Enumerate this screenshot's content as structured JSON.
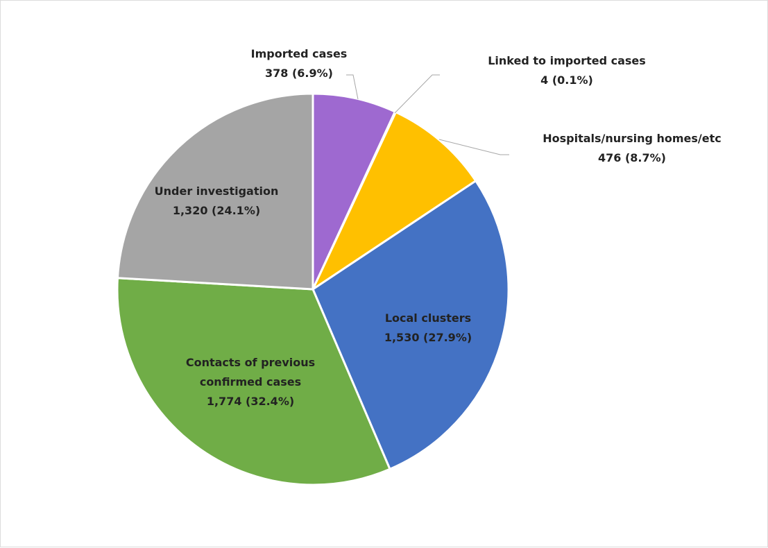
{
  "chart_data": {
    "type": "pie",
    "title": "",
    "slices": [
      {
        "name": "Imported cases",
        "value": 378,
        "pct_label": "378  (6.9%)",
        "color": "#9e69d0"
      },
      {
        "name": "Linked to  imported cases",
        "value": 4,
        "pct_label": "4  (0.1%)",
        "color": "#7f7f7f"
      },
      {
        "name": "Hospitals/nursing homes/etc",
        "value": 476,
        "pct_label": "476  (8.7%)",
        "color": "#ffc000"
      },
      {
        "name": "Local clusters",
        "value": 1530,
        "pct_label": "1,530  (27.9%)",
        "color": "#4472c4"
      },
      {
        "name": "Contacts of previous confirmed cases",
        "name_lines": [
          "Contacts of previous",
          "confirmed cases"
        ],
        "value": 1774,
        "pct_label": "1,774  (32.4%)",
        "color": "#70ad47"
      },
      {
        "name": "Under investigation",
        "value": 1320,
        "pct_label": "1,320  (24.1%)",
        "color": "#a5a5a5"
      }
    ],
    "start_angle_deg": 0,
    "direction": "clockwise",
    "legend": "none"
  }
}
